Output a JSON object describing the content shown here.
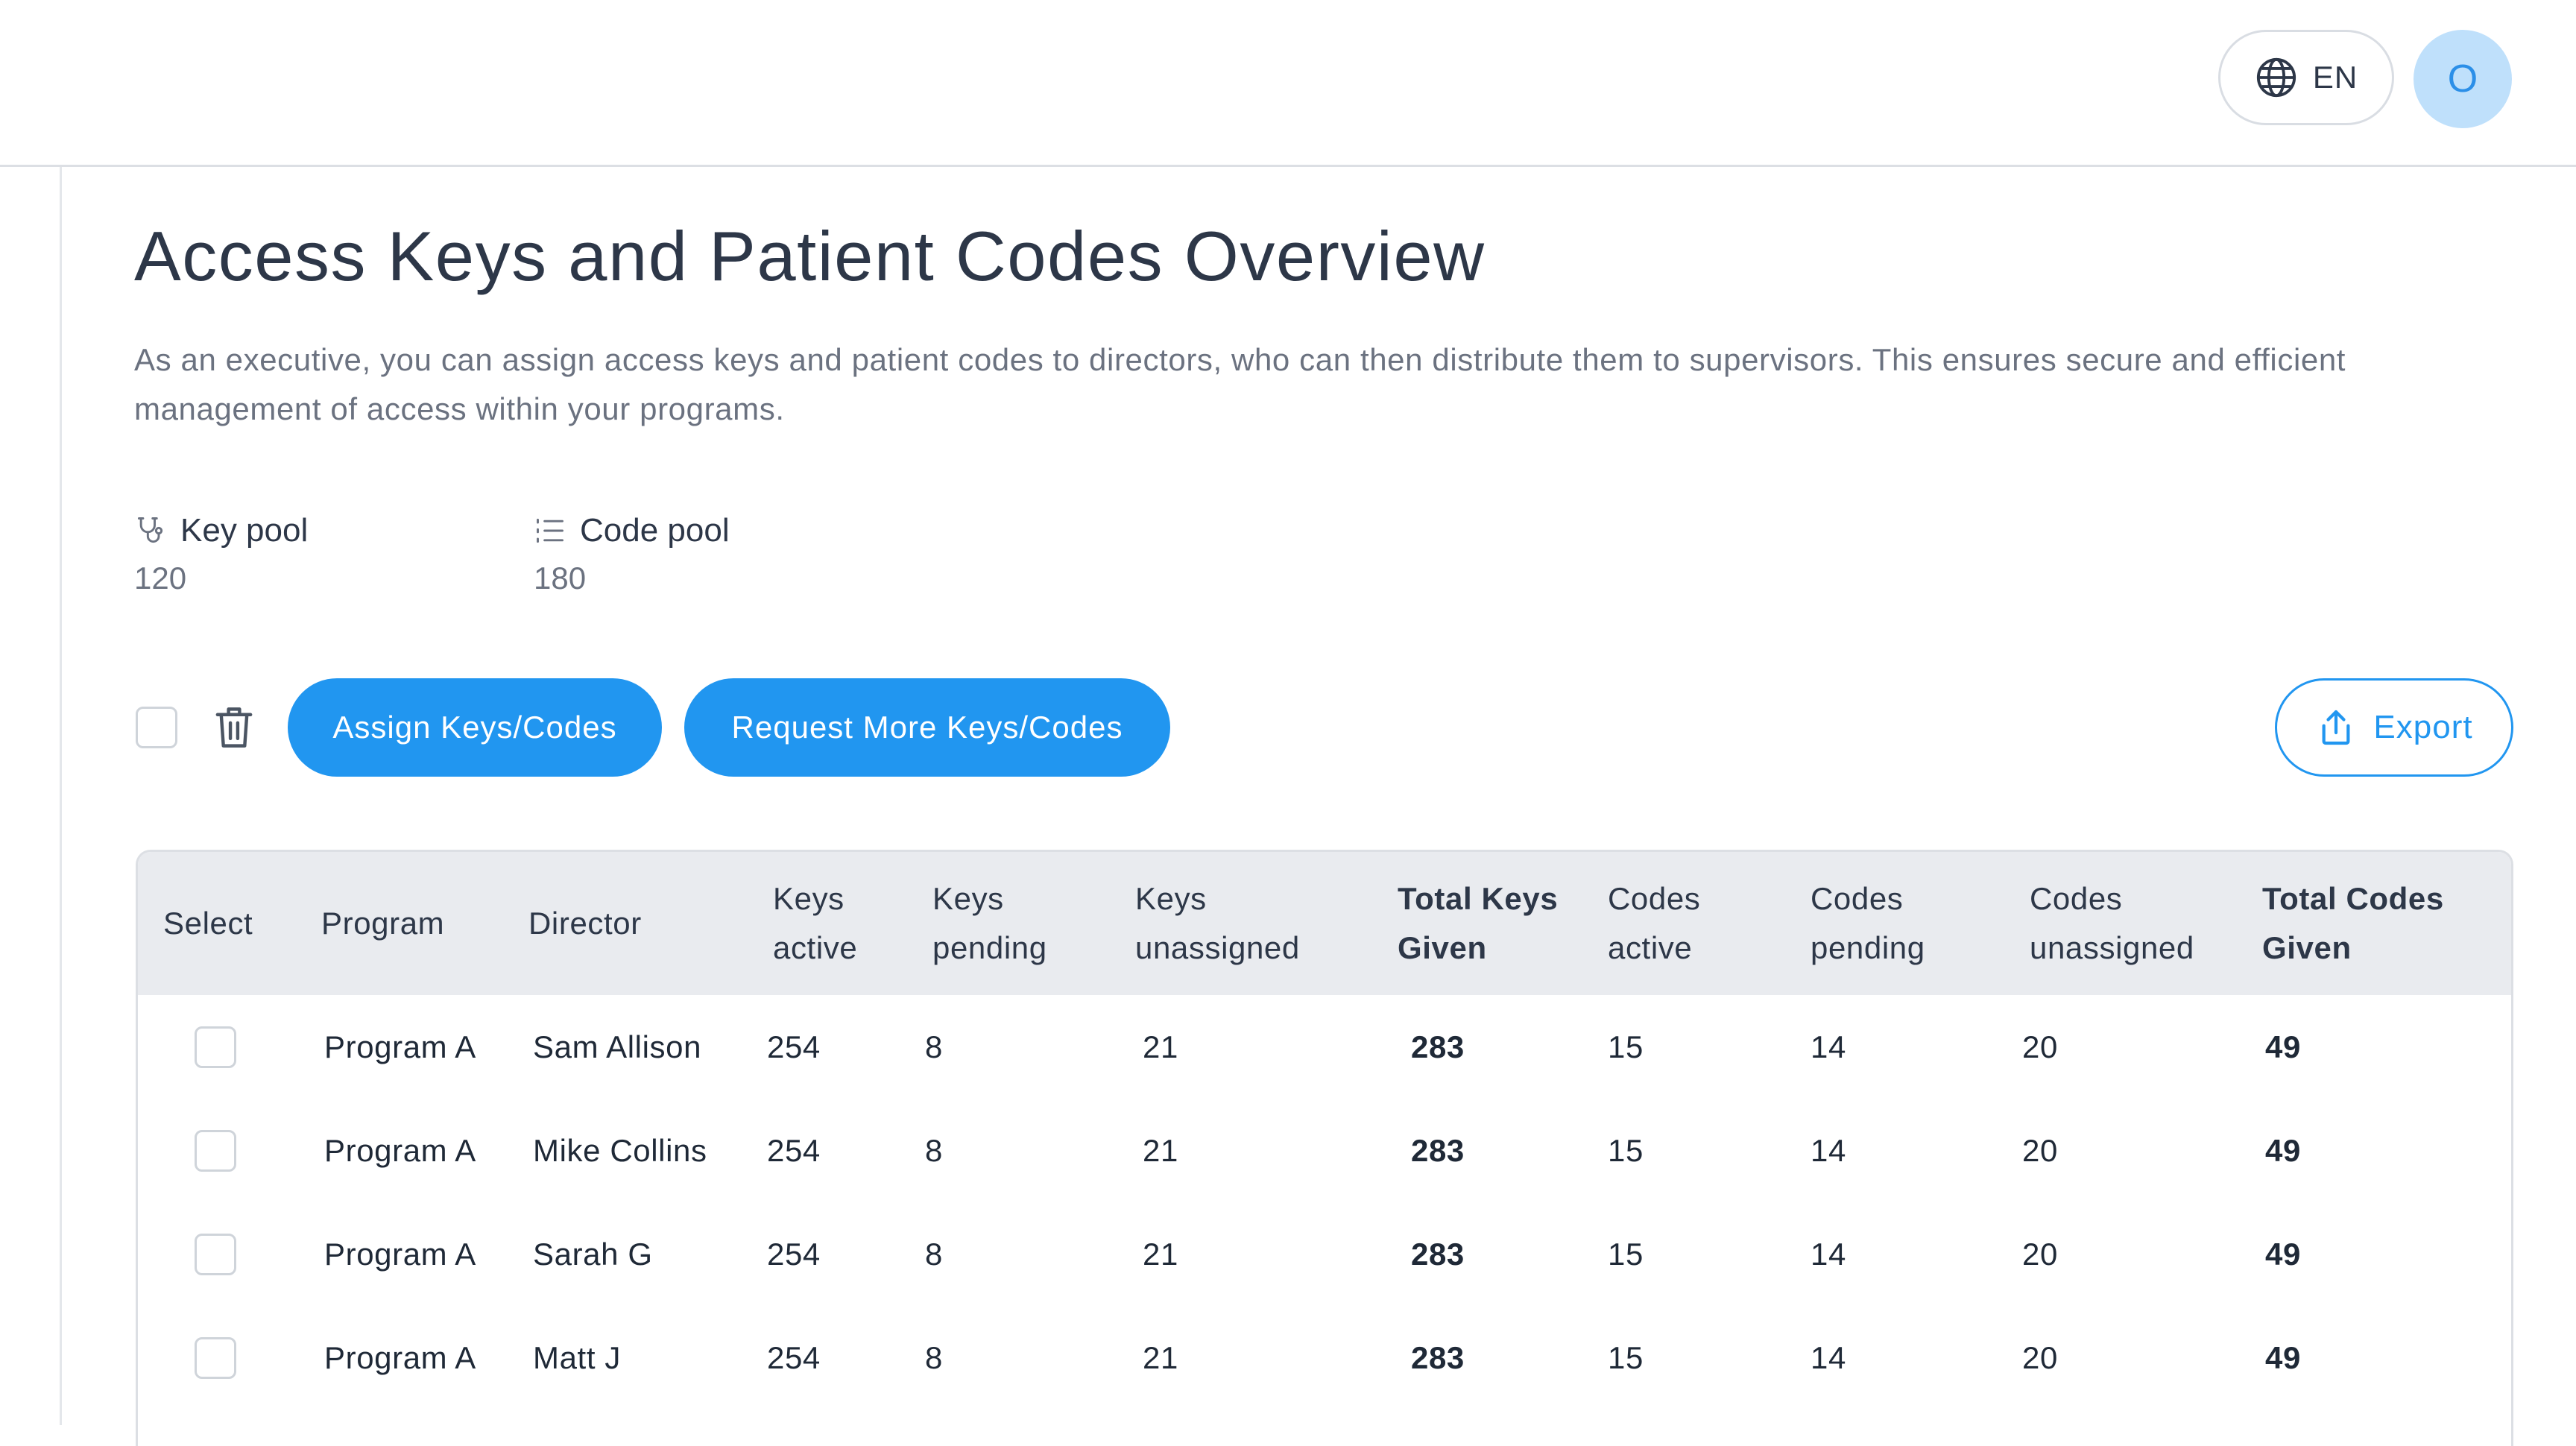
{
  "topbar": {
    "language": "EN",
    "avatar_initial": "O"
  },
  "page": {
    "title": "Access Keys and Patient Codes Overview",
    "description": "As an executive, you can assign access keys and patient codes to directors, who can then distribute them to supervisors. This ensures secure and efficient management of access within your programs."
  },
  "pools": {
    "key": {
      "label": "Key pool",
      "value": "120",
      "icon": "stethoscope-icon"
    },
    "code": {
      "label": "Code pool",
      "value": "180",
      "icon": "list-icon"
    }
  },
  "toolbar": {
    "assign_label": "Assign Keys/Codes",
    "request_label": "Request More Keys/Codes",
    "export_label": "Export"
  },
  "table": {
    "headers": {
      "select": "Select",
      "program": "Program",
      "director": "Director",
      "keys_active": "Keys active",
      "keys_pending": "Keys pending",
      "keys_unassigned": "Keys unassigned",
      "total_keys": "Total Keys Given",
      "codes_active": "Codes active",
      "codes_pending": "Codes pending",
      "codes_unassigned": "Codes unassigned",
      "total_codes": "Total Codes Given"
    },
    "rows": [
      {
        "program": "Program A",
        "director": "Sam Allison",
        "keys_active": "254",
        "keys_pending": "8",
        "keys_unassigned": "21",
        "total_keys": "283",
        "codes_active": "15",
        "codes_pending": "14",
        "codes_unassigned": "20",
        "total_codes": "49"
      },
      {
        "program": "Program A",
        "director": "Mike Collins",
        "keys_active": "254",
        "keys_pending": "8",
        "keys_unassigned": "21",
        "total_keys": "283",
        "codes_active": "15",
        "codes_pending": "14",
        "codes_unassigned": "20",
        "total_codes": "49"
      },
      {
        "program": "Program A",
        "director": "Sarah G",
        "keys_active": "254",
        "keys_pending": "8",
        "keys_unassigned": "21",
        "total_keys": "283",
        "codes_active": "15",
        "codes_pending": "14",
        "codes_unassigned": "20",
        "total_codes": "49"
      },
      {
        "program": "Program A",
        "director": "Matt J",
        "keys_active": "254",
        "keys_pending": "8",
        "keys_unassigned": "21",
        "total_keys": "283",
        "codes_active": "15",
        "codes_pending": "14",
        "codes_unassigned": "20",
        "total_codes": "49"
      }
    ]
  },
  "colors": {
    "accent": "#2196f0",
    "avatar_bg": "#bfe0fb",
    "header_bg": "#e9ebef"
  }
}
